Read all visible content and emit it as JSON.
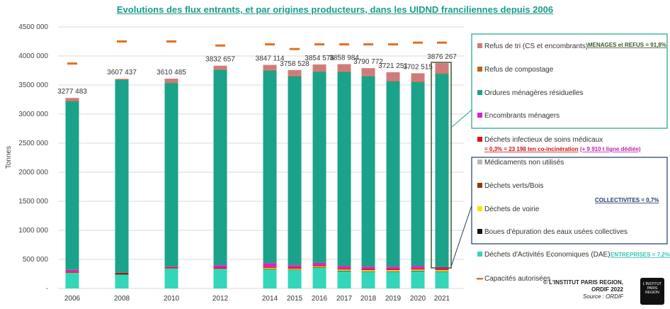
{
  "title": "Evolutions des flux entrants, et par origines producteurs, dans les UIDND franciliennes depuis 2006",
  "colors": {
    "refus_tri": "#d07b7b",
    "refus_compostage": "#b5651d",
    "om_residuelles": "#1aa38a",
    "encombrants": "#e020c8",
    "dasri": "#e01010",
    "medicaments": "#b8b8b8",
    "dechets_verts": "#8b3a0a",
    "voirie": "#f5e400",
    "boues": "#111111",
    "dae": "#33d6b8",
    "capacite": "#e07020"
  },
  "chart_data": {
    "type": "bar",
    "stacked": true,
    "ylabel": "Tonnes",
    "ylim": [
      0,
      4500000
    ],
    "yticks": [
      "-",
      "500 000",
      "1000 000",
      "1500 000",
      "2000 000",
      "2500 000",
      "3000 000",
      "3500 000",
      "4000 000",
      "4500 000"
    ],
    "categories": [
      "2006",
      "2008",
      "2010",
      "2012",
      "2014",
      "2015",
      "2016",
      "2017",
      "2018",
      "2019",
      "2020",
      "2021"
    ],
    "totals_labels": [
      "3277 483",
      "3607 437",
      "3610 485",
      "3832 657",
      "3847 114",
      "3758 528",
      "3854 576",
      "3858 984",
      "3790 772",
      "3721 251",
      "3702 515",
      "3876 267"
    ],
    "totals": [
      3277483,
      3607437,
      3610485,
      3832657,
      3847114,
      3758528,
      3854576,
      3858984,
      3790772,
      3721251,
      3702515,
      3876267
    ],
    "series": [
      {
        "key": "dae",
        "name": "Déchets d'Activités Economiques (DAE)",
        "values": [
          270000,
          240000,
          345000,
          340000,
          330000,
          320000,
          360000,
          300000,
          290000,
          290000,
          300000,
          290000
        ]
      },
      {
        "key": "boues",
        "name": "Boues d'épuration des eaux usées collectives",
        "values": [
          0,
          10000,
          0,
          0,
          5000,
          5000,
          5000,
          5000,
          5000,
          5000,
          5000,
          5000
        ]
      },
      {
        "key": "voirie",
        "name": "Déchets de voirie",
        "values": [
          0,
          0,
          0,
          0,
          20000,
          15000,
          15000,
          20000,
          20000,
          20000,
          20000,
          20000
        ]
      },
      {
        "key": "dechets_verts",
        "name": "Déchets verts/Bois",
        "values": [
          0,
          0,
          0,
          0,
          0,
          0,
          0,
          0,
          0,
          0,
          0,
          0
        ]
      },
      {
        "key": "medicaments",
        "name": "Médicaments non utilisés",
        "values": [
          0,
          0,
          0,
          0,
          0,
          0,
          0,
          0,
          0,
          0,
          0,
          0
        ]
      },
      {
        "key": "dasri",
        "name": "Déchets infectieux de soins médicaux",
        "values": [
          20000,
          20000,
          20000,
          20000,
          20000,
          20000,
          20000,
          20000,
          20000,
          20000,
          20000,
          20000
        ]
      },
      {
        "key": "encombrants",
        "name": "Encombrants ménagers",
        "values": [
          30000,
          0,
          10000,
          40000,
          60000,
          40000,
          40000,
          40000,
          40000,
          40000,
          40000,
          40000
        ]
      },
      {
        "key": "om_residuelles",
        "name": "Ordures ménagères résiduelles",
        "values": [
          2900000,
          3317000,
          3160000,
          3360000,
          3312000,
          3250000,
          3290000,
          3340000,
          3275000,
          3186000,
          3166000,
          3316000
        ]
      },
      {
        "key": "refus_compostage",
        "name": "Refus de compostage",
        "values": [
          10000,
          10000,
          10000,
          10000,
          10000,
          10000,
          10000,
          10000,
          10000,
          10000,
          10000,
          10000
        ]
      },
      {
        "key": "refus_tri",
        "name": "Refus de tri (CS et encombrants)",
        "values": [
          47483,
          10437,
          65485,
          62657,
          90114,
          98528,
          114576,
          123984,
          130772,
          150251,
          141515,
          175267
        ]
      }
    ],
    "capacity": {
      "name": "Capacités autorisées",
      "values": [
        3870000,
        4250000,
        4250000,
        4180000,
        4200000,
        4120000,
        4200000,
        4200000,
        4200000,
        4200000,
        4230000,
        4230000
      ]
    }
  },
  "legend": {
    "menages_items": [
      {
        "key": "refus_tri",
        "label": "Refus de tri (CS et encombrants)"
      },
      {
        "key": "refus_compostage",
        "label": "Refus de compostage"
      },
      {
        "key": "om_residuelles",
        "label": "Ordures ménagères résiduelles"
      },
      {
        "key": "encombrants",
        "label": "Encombrants ménagers"
      }
    ],
    "menages_note": "MENAGES et REFUS = 91,8%",
    "dasri_label": "Déchets infectieux de soins médicaux",
    "dasri_note_a": "= 0,3% = 23 198 ten co-incinération",
    "dasri_note_b": "(+ 9 910 t ligne dédiée)",
    "collectivites_items": [
      {
        "key": "medicaments",
        "label": "Médicaments non utilisés"
      },
      {
        "key": "dechets_verts",
        "label": "Déchets verts/Bois"
      },
      {
        "key": "voirie",
        "label": "Déchets de voirie"
      },
      {
        "key": "boues",
        "label": "Boues d'épuration des eaux usées collectives"
      }
    ],
    "collectivites_note": "COLLECTIVITES = 0,7%",
    "dae_label": "Déchets d'Activités Economiques (DAE)",
    "dae_note": "ENTREPRISES = 7,2%",
    "capacity_label": "Capacités autorisées"
  },
  "credit": {
    "line1": "© L'INSTITUT PARIS REGION,",
    "line2": "ORDIF 2022",
    "line3": "Source : ORDIF"
  },
  "logo": {
    "line1": "L'INSTITUT",
    "line2": "PARIS",
    "line3": "REGION"
  }
}
